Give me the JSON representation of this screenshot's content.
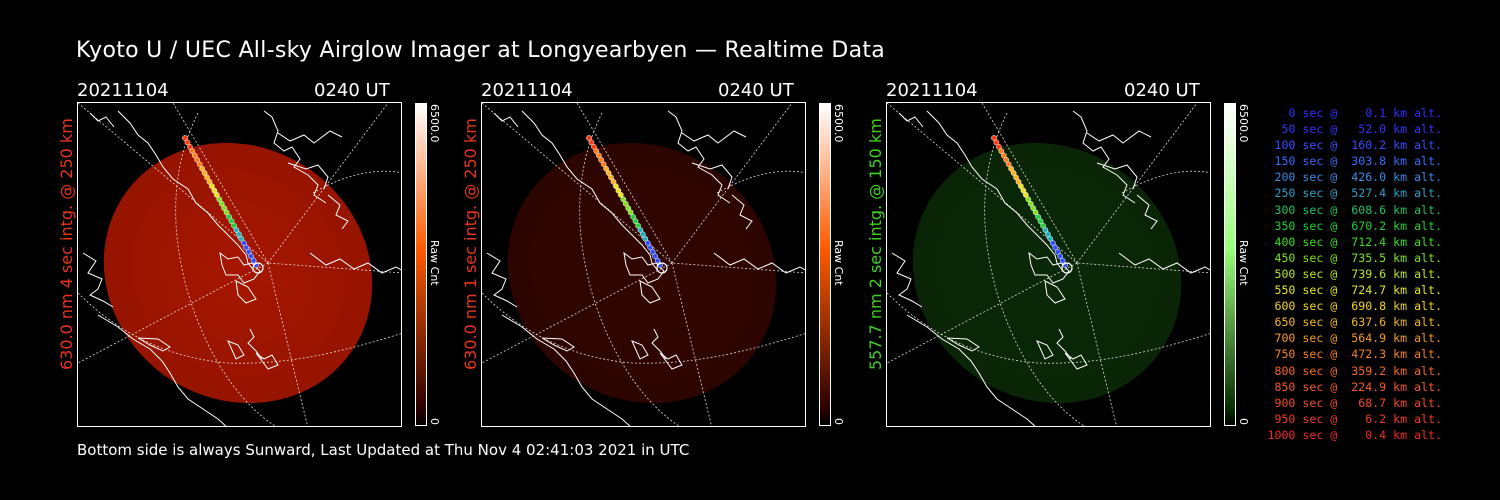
{
  "title": "Kyoto U / UEC All-sky Airglow Imager at Longyearbyen — Realtime Data",
  "panels": [
    {
      "date": "20211104",
      "time": "0240 UT",
      "label": "630.0 nm 4 sec intg. @ 250 km",
      "label_color": "#e8351c",
      "colorbar_max": "6500.0",
      "colorbar_unit": "Raw Cnt",
      "colorbar_min": "0",
      "glow": "#c41a00",
      "glow_opacity": 0.85,
      "colorbar_top": "#ffffff",
      "colorbar_mid": "#ff5a00",
      "colorbar_bottom": "#2a0000"
    },
    {
      "date": "20211104",
      "time": "0240 UT",
      "label": "630.0 nm 1 sec intg. @ 250 km",
      "label_color": "#e8351c",
      "colorbar_max": "6500.0",
      "colorbar_unit": "Raw Cnt",
      "colorbar_min": "0",
      "glow": "#5a0a00",
      "glow_opacity": 0.55,
      "colorbar_top": "#ffffff",
      "colorbar_mid": "#ff5a00",
      "colorbar_bottom": "#2a0000"
    },
    {
      "date": "20211104",
      "time": "0240 UT",
      "label": "557.7 nm 2 sec intg. @ 150 km",
      "label_color": "#3cd21e",
      "colorbar_max": "6500.0",
      "colorbar_unit": "Raw Cnt",
      "colorbar_min": "0",
      "glow": "#0e3a0a",
      "glow_opacity": 0.7,
      "colorbar_top": "#ffffff",
      "colorbar_mid": "#9aff7a",
      "colorbar_bottom": "#0a2a05"
    }
  ],
  "footer": "Bottom side is always Sunward, Last Updated at Thu Nov  4 02:41:03 2021 in UTC",
  "legend": [
    {
      "text": "   0 sec @    0.1 km alt.",
      "color": "#3030ff"
    },
    {
      "text": "  50 sec @   52.0 km alt.",
      "color": "#3434ff"
    },
    {
      "text": " 100 sec @  160.2 km alt.",
      "color": "#3a4cff"
    },
    {
      "text": " 150 sec @  303.8 km alt.",
      "color": "#3a6aff"
    },
    {
      "text": " 200 sec @  426.0 km alt.",
      "color": "#3a8ae8"
    },
    {
      "text": " 250 sec @  527.4 km alt.",
      "color": "#2aa0c8"
    },
    {
      "text": " 300 sec @  608.6 km alt.",
      "color": "#22c060"
    },
    {
      "text": " 350 sec @  670.2 km alt.",
      "color": "#22d22a"
    },
    {
      "text": " 400 sec @  712.4 km alt.",
      "color": "#3ade22"
    },
    {
      "text": " 450 sec @  735.5 km alt.",
      "color": "#7ae422"
    },
    {
      "text": " 500 sec @  739.6 km alt.",
      "color": "#b8e822"
    },
    {
      "text": " 550 sec @  724.7 km alt.",
      "color": "#e2e822"
    },
    {
      "text": " 600 sec @  690.8 km alt.",
      "color": "#f2d222"
    },
    {
      "text": " 650 sec @  637.6 km alt.",
      "color": "#f4b622"
    },
    {
      "text": " 700 sec @  564.9 km alt.",
      "color": "#f49a22"
    },
    {
      "text": " 750 sec @  472.3 km alt.",
      "color": "#f48222"
    },
    {
      "text": " 800 sec @  359.2 km alt.",
      "color": "#f46a22"
    },
    {
      "text": " 850 sec @  224.9 km alt.",
      "color": "#f45a22"
    },
    {
      "text": " 900 sec @   68.7 km alt.",
      "color": "#f24a22"
    },
    {
      "text": " 950 sec @    6.2 km alt.",
      "color": "#f23a22"
    },
    {
      "text": "1000 sec @    0.4 km alt.",
      "color": "#f02a22"
    }
  ]
}
